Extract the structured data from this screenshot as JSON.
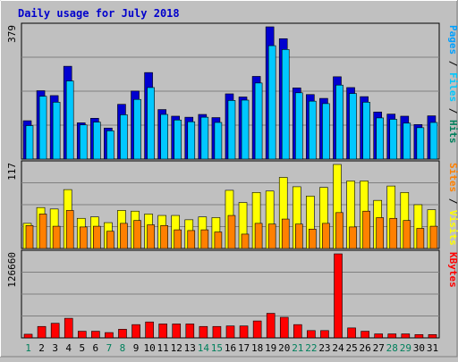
{
  "chart_data": {
    "type": "bar",
    "title": "Daily usage for July 2018",
    "categories": [
      "1",
      "2",
      "3",
      "4",
      "5",
      "6",
      "7",
      "8",
      "9",
      "10",
      "11",
      "12",
      "13",
      "14",
      "15",
      "16",
      "17",
      "18",
      "19",
      "20",
      "21",
      "22",
      "23",
      "24",
      "25",
      "26",
      "27",
      "28",
      "29",
      "30",
      "31"
    ],
    "weekend_days": [
      "1",
      "7",
      "8",
      "14",
      "15",
      "21",
      "22",
      "28",
      "29"
    ],
    "panels": [
      {
        "id": "hits",
        "max_label": "379",
        "ylim": [
          0,
          379
        ],
        "legend": [
          "Pages",
          "Files",
          "Hits"
        ],
        "series": [
          {
            "name": "Hits",
            "color": "#0000d0",
            "values": [
              110,
              196,
              182,
              266,
              104,
              117,
              89,
              157,
              195,
              248,
              142,
              123,
              120,
              128,
              119,
              187,
              178,
              237,
              379,
              345,
              204,
              185,
              174,
              236,
              205,
              179,
              135,
              129,
              123,
              99,
              124
            ]
          },
          {
            "name": "Files",
            "color": "#00c8ff",
            "values": [
              96,
              180,
              163,
              224,
              98,
              106,
              81,
              127,
              171,
              205,
              128,
              112,
              107,
              120,
              105,
              168,
              169,
              218,
              325,
              314,
              190,
              166,
              159,
              212,
              188,
              163,
              118,
              114,
              103,
              90,
              105
            ]
          },
          {
            "name": "Pages",
            "color": "#00a0ff",
            "values": [
              96,
              180,
              163,
              224,
              98,
              106,
              81,
              127,
              171,
              205,
              128,
              112,
              107,
              120,
              105,
              168,
              169,
              218,
              325,
              314,
              190,
              166,
              159,
              212,
              188,
              163,
              118,
              114,
              103,
              90,
              105
            ]
          }
        ]
      },
      {
        "id": "visits",
        "max_label": "117",
        "ylim": [
          0,
          117
        ],
        "legend": [
          "Sites",
          "Visits"
        ],
        "series": [
          {
            "name": "Sites",
            "color": "#ffff00",
            "values": [
              35,
              57,
              55,
              82,
              42,
              44,
              36,
              53,
              52,
              48,
              46,
              46,
              40,
              44,
              43,
              81,
              64,
              78,
              80,
              99,
              86,
              73,
              85,
              117,
              94,
              94,
              67,
              87,
              78,
              61,
              54
            ]
          },
          {
            "name": "Visits",
            "color": "#ff8000",
            "values": [
              32,
              48,
              31,
              53,
              30,
              31,
              24,
              35,
              39,
              33,
              32,
              26,
              25,
              26,
              23,
              46,
              20,
              35,
              34,
              41,
              34,
              27,
              35,
              50,
              30,
              52,
              43,
              42,
              39,
              28,
              31
            ]
          }
        ]
      },
      {
        "id": "kbytes",
        "max_label": "126660",
        "ylim": [
          0,
          126660
        ],
        "legend": [
          "KBytes"
        ],
        "series": [
          {
            "name": "KBytes",
            "color": "#ff0000",
            "values": [
              5500,
              17200,
              22000,
              29500,
              10000,
              10000,
              8000,
              13000,
              20000,
              24000,
              21000,
              21000,
              21000,
              17200,
              17200,
              18000,
              18000,
              25500,
              37000,
              31000,
              20000,
              11000,
              11000,
              126660,
              15000,
              10000,
              6000,
              6000,
              6000,
              5000,
              5000
            ]
          }
        ]
      }
    ]
  }
}
